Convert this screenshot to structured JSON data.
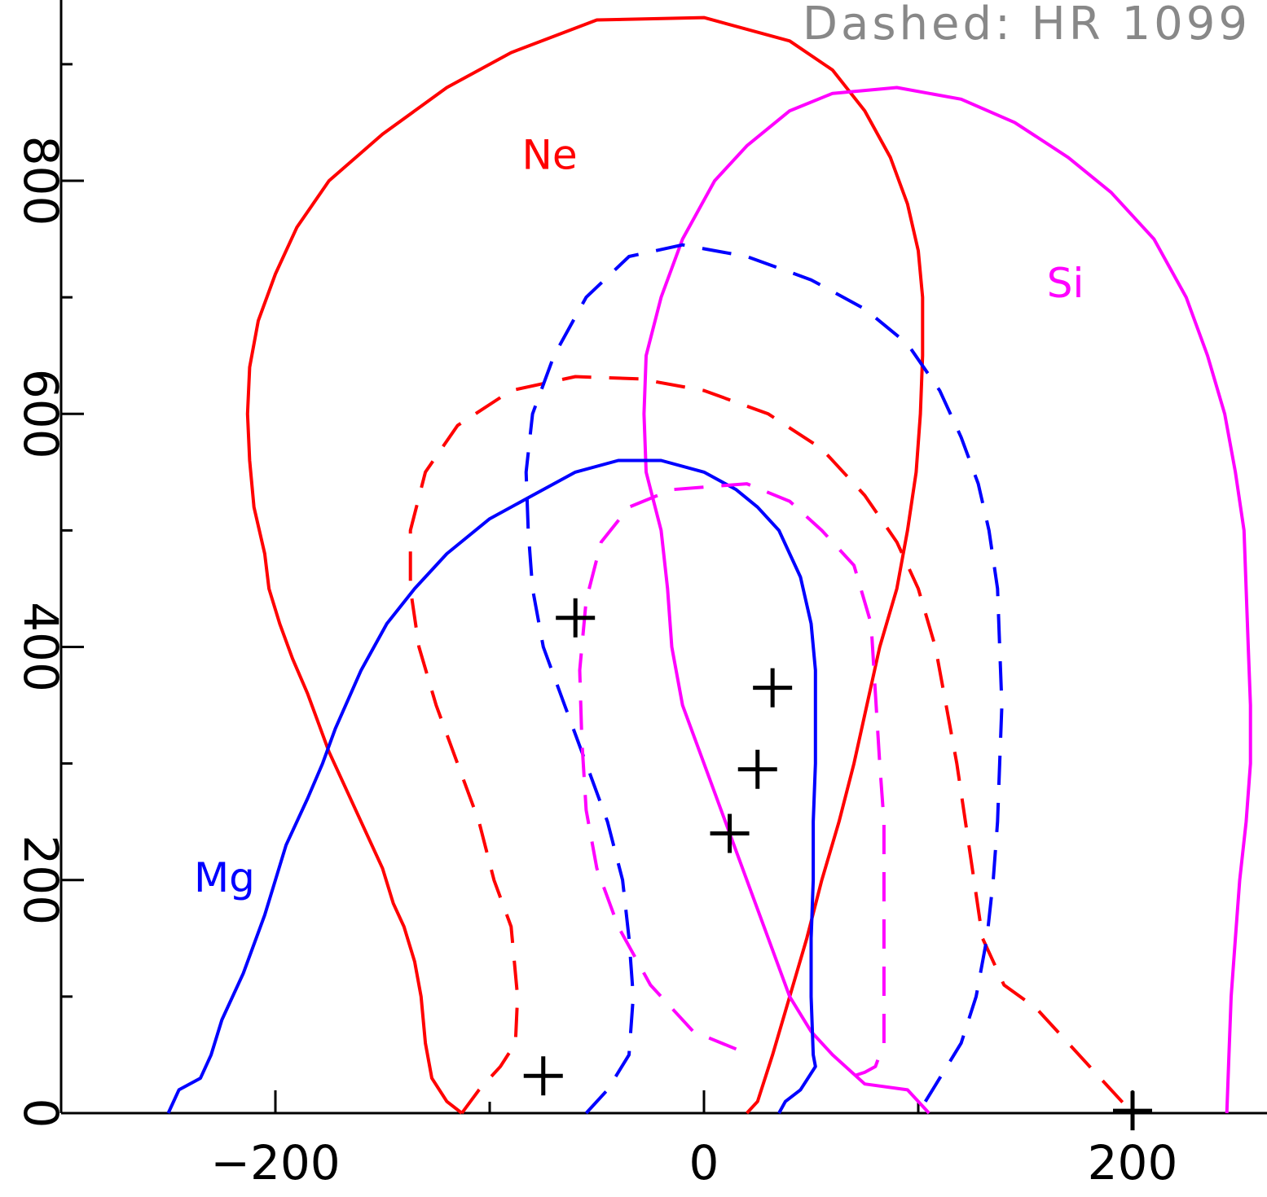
{
  "chart_data": {
    "type": "line",
    "title": "",
    "xlabel": "",
    "ylabel": "",
    "xlim": [
      -300,
      262
    ],
    "ylim": [
      0,
      955
    ],
    "legend_note": "Dashed: HR 1099",
    "x_ticks": [
      {
        "value": -200,
        "label": "−200"
      },
      {
        "value": 0,
        "label": "0"
      },
      {
        "value": 200,
        "label": "200"
      }
    ],
    "y_ticks": [
      {
        "value": 0,
        "label": "0"
      },
      {
        "value": 200,
        "label": "200"
      },
      {
        "value": 400,
        "label": "400"
      },
      {
        "value": 600,
        "label": "600"
      },
      {
        "value": 800,
        "label": "800"
      }
    ],
    "x_minor_ticks": [
      -300,
      -200,
      -100,
      0,
      100,
      200
    ],
    "y_minor_ticks": [
      100,
      300,
      500,
      700,
      900
    ],
    "series": [
      {
        "name": "Ne",
        "color": "#ff0000",
        "dashed": false,
        "points": [
          [
            -113,
            0
          ],
          [
            -120,
            10
          ],
          [
            -127,
            30
          ],
          [
            -130,
            60
          ],
          [
            -132,
            100
          ],
          [
            -135,
            130
          ],
          [
            -140,
            160
          ],
          [
            -145,
            180
          ],
          [
            -150,
            210
          ],
          [
            -160,
            250
          ],
          [
            -175,
            310
          ],
          [
            -185,
            360
          ],
          [
            -192,
            390
          ],
          [
            -198,
            420
          ],
          [
            -203,
            450
          ],
          [
            -205,
            480
          ],
          [
            -210,
            520
          ],
          [
            -212,
            560
          ],
          [
            -213,
            600
          ],
          [
            -212,
            640
          ],
          [
            -208,
            680
          ],
          [
            -200,
            720
          ],
          [
            -190,
            760
          ],
          [
            -175,
            800
          ],
          [
            -150,
            840
          ],
          [
            -120,
            880
          ],
          [
            -90,
            910
          ],
          [
            -50,
            938
          ],
          [
            0,
            940
          ],
          [
            40,
            920
          ],
          [
            60,
            895
          ],
          [
            75,
            860
          ],
          [
            87,
            820
          ],
          [
            95,
            780
          ],
          [
            100,
            740
          ],
          [
            102,
            700
          ],
          [
            102,
            650
          ],
          [
            101,
            600
          ],
          [
            99,
            550
          ],
          [
            95,
            500
          ],
          [
            90,
            450
          ],
          [
            82,
            400
          ],
          [
            76,
            350
          ],
          [
            70,
            300
          ],
          [
            63,
            250
          ],
          [
            55,
            200
          ],
          [
            48,
            150
          ],
          [
            40,
            100
          ],
          [
            32,
            50
          ],
          [
            25,
            10
          ],
          [
            20,
            0
          ]
        ]
      },
      {
        "name": "Si",
        "color": "#ff00ff",
        "dashed": false,
        "points": [
          [
            105,
            0
          ],
          [
            95,
            20
          ],
          [
            75,
            25
          ],
          [
            60,
            50
          ],
          [
            50,
            70
          ],
          [
            40,
            100
          ],
          [
            30,
            150
          ],
          [
            20,
            200
          ],
          [
            10,
            250
          ],
          [
            0,
            300
          ],
          [
            -10,
            350
          ],
          [
            -15,
            400
          ],
          [
            -17,
            450
          ],
          [
            -20,
            500
          ],
          [
            -27,
            550
          ],
          [
            -28,
            600
          ],
          [
            -27,
            650
          ],
          [
            -20,
            700
          ],
          [
            -10,
            750
          ],
          [
            5,
            800
          ],
          [
            20,
            830
          ],
          [
            40,
            860
          ],
          [
            60,
            875
          ],
          [
            90,
            880
          ],
          [
            120,
            870
          ],
          [
            145,
            850
          ],
          [
            170,
            820
          ],
          [
            190,
            790
          ],
          [
            210,
            750
          ],
          [
            225,
            700
          ],
          [
            235,
            650
          ],
          [
            243,
            600
          ],
          [
            248,
            550
          ],
          [
            252,
            500
          ],
          [
            253,
            450
          ],
          [
            254,
            400
          ],
          [
            255,
            350
          ],
          [
            255,
            300
          ],
          [
            253,
            250
          ],
          [
            250,
            200
          ],
          [
            248,
            150
          ],
          [
            246,
            100
          ],
          [
            245,
            50
          ],
          [
            244,
            0
          ]
        ]
      },
      {
        "name": "Mg",
        "color": "#0000ff",
        "dashed": false,
        "points": [
          [
            -250,
            0
          ],
          [
            -245,
            20
          ],
          [
            -235,
            30
          ],
          [
            -230,
            50
          ],
          [
            -225,
            80
          ],
          [
            -215,
            120
          ],
          [
            -205,
            170
          ],
          [
            -200,
            200
          ],
          [
            -195,
            230
          ],
          [
            -185,
            270
          ],
          [
            -178,
            300
          ],
          [
            -172,
            330
          ],
          [
            -160,
            380
          ],
          [
            -148,
            420
          ],
          [
            -135,
            450
          ],
          [
            -120,
            480
          ],
          [
            -100,
            510
          ],
          [
            -80,
            530
          ],
          [
            -60,
            550
          ],
          [
            -40,
            560
          ],
          [
            -20,
            560
          ],
          [
            0,
            550
          ],
          [
            15,
            535
          ],
          [
            25,
            520
          ],
          [
            35,
            500
          ],
          [
            45,
            460
          ],
          [
            50,
            420
          ],
          [
            52,
            380
          ],
          [
            52,
            340
          ],
          [
            52,
            300
          ],
          [
            51,
            250
          ],
          [
            51,
            200
          ],
          [
            50,
            150
          ],
          [
            50,
            100
          ],
          [
            51,
            50
          ],
          [
            52,
            40
          ],
          [
            45,
            20
          ],
          [
            38,
            10
          ],
          [
            35,
            0
          ]
        ]
      },
      {
        "name": "Ne (HR 1099)",
        "color": "#ff0000",
        "dashed": true,
        "points": [
          [
            -113,
            0
          ],
          [
            -105,
            20
          ],
          [
            -95,
            40
          ],
          [
            -88,
            60
          ],
          [
            -87,
            100
          ],
          [
            -90,
            160
          ],
          [
            -98,
            200
          ],
          [
            -105,
            250
          ],
          [
            -115,
            300
          ],
          [
            -125,
            350
          ],
          [
            -133,
            400
          ],
          [
            -137,
            450
          ],
          [
            -137,
            500
          ],
          [
            -130,
            550
          ],
          [
            -115,
            590
          ],
          [
            -90,
            620
          ],
          [
            -60,
            632
          ],
          [
            -30,
            630
          ],
          [
            0,
            620
          ],
          [
            30,
            600
          ],
          [
            55,
            570
          ],
          [
            75,
            530
          ],
          [
            90,
            490
          ],
          [
            100,
            450
          ],
          [
            108,
            400
          ],
          [
            113,
            350
          ],
          [
            118,
            300
          ],
          [
            122,
            250
          ],
          [
            126,
            200
          ],
          [
            130,
            150
          ],
          [
            140,
            110
          ],
          [
            155,
            90
          ],
          [
            170,
            60
          ],
          [
            185,
            30
          ],
          [
            195,
            10
          ],
          [
            200,
            0
          ]
        ]
      },
      {
        "name": "Mg (HR 1099)",
        "color": "#0000ff",
        "dashed": true,
        "points": [
          [
            -55,
            0
          ],
          [
            -45,
            20
          ],
          [
            -35,
            50
          ],
          [
            -33,
            100
          ],
          [
            -35,
            150
          ],
          [
            -38,
            200
          ],
          [
            -45,
            250
          ],
          [
            -55,
            300
          ],
          [
            -65,
            350
          ],
          [
            -75,
            400
          ],
          [
            -80,
            450
          ],
          [
            -82,
            500
          ],
          [
            -83,
            550
          ],
          [
            -80,
            600
          ],
          [
            -70,
            650
          ],
          [
            -55,
            700
          ],
          [
            -35,
            735
          ],
          [
            -10,
            745
          ],
          [
            20,
            735
          ],
          [
            50,
            715
          ],
          [
            75,
            690
          ],
          [
            95,
            660
          ],
          [
            110,
            620
          ],
          [
            120,
            580
          ],
          [
            128,
            540
          ],
          [
            133,
            500
          ],
          [
            137,
            450
          ],
          [
            138,
            400
          ],
          [
            139,
            350
          ],
          [
            138,
            300
          ],
          [
            137,
            250
          ],
          [
            135,
            200
          ],
          [
            132,
            150
          ],
          [
            127,
            100
          ],
          [
            120,
            60
          ],
          [
            110,
            30
          ],
          [
            100,
            0
          ]
        ]
      },
      {
        "name": "Si (HR 1099)",
        "color": "#ff00ff",
        "dashed": true,
        "points": [
          [
            15,
            55
          ],
          [
            -5,
            70
          ],
          [
            -25,
            110
          ],
          [
            -40,
            160
          ],
          [
            -50,
            210
          ],
          [
            -55,
            260
          ],
          [
            -57,
            320
          ],
          [
            -58,
            380
          ],
          [
            -55,
            440
          ],
          [
            -48,
            490
          ],
          [
            -35,
            520
          ],
          [
            -15,
            535
          ],
          [
            20,
            540
          ],
          [
            40,
            525
          ],
          [
            55,
            500
          ],
          [
            70,
            470
          ],
          [
            78,
            420
          ],
          [
            80,
            360
          ],
          [
            82,
            300
          ],
          [
            84,
            250
          ],
          [
            84,
            200
          ],
          [
            84,
            150
          ],
          [
            84,
            100
          ],
          [
            84,
            60
          ],
          [
            80,
            40
          ],
          [
            75,
            35
          ],
          [
            70,
            32
          ]
        ]
      }
    ],
    "series_labels": [
      {
        "text": "Ne",
        "color": "#ff0000",
        "x": -85,
        "y": 810
      },
      {
        "text": "Si",
        "color": "#ff00ff",
        "x": 160,
        "y": 700
      },
      {
        "text": "Mg",
        "color": "#0000ff",
        "x": -238,
        "y": 190
      }
    ],
    "markers": [
      {
        "x": -60,
        "y": 425
      },
      {
        "x": 32,
        "y": 365
      },
      {
        "x": 25,
        "y": 295
      },
      {
        "x": 12,
        "y": 240
      },
      {
        "x": -75,
        "y": 32
      },
      {
        "x": 200,
        "y": 2
      }
    ]
  }
}
